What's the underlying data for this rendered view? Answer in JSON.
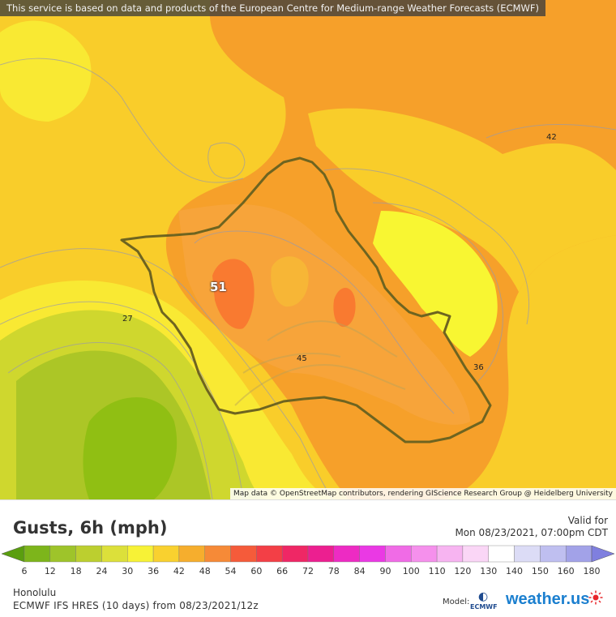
{
  "banner_text": "This service is based on data and products of the European Centre for Medium-range Weather Forecasts (ECMWF)",
  "attribution": "Map data © OpenStreetMap contributors, rendering GIScience Research Group @ Heidelberg University",
  "map_labels": {
    "l42": "42",
    "l51": "51",
    "l27": "27",
    "l45": "45",
    "l36": "36"
  },
  "title": "Gusts, 6h (mph)",
  "valid_label": "Valid for",
  "valid_date": "Mon 08/23/2021, 07:00pm CDT",
  "location": "Honolulu",
  "model_info": "ECMWF IFS HRES (10 days) from 08/23/2021/12z",
  "model_label": "Model:",
  "ecmwf_logo_text": "ECMWF",
  "brand": "weather.us",
  "scale": {
    "labels": [
      "6",
      "12",
      "18",
      "24",
      "30",
      "36",
      "42",
      "48",
      "54",
      "60",
      "66",
      "72",
      "78",
      "84",
      "90",
      "100",
      "110",
      "120",
      "130",
      "140",
      "150",
      "160",
      "180"
    ],
    "colors": [
      "#5a9e0f",
      "#7db51b",
      "#9ec42a",
      "#bccf2f",
      "#dce03a",
      "#f7f236",
      "#f9d12f",
      "#f6ae2d",
      "#f68a37",
      "#f55b3a",
      "#f33f46",
      "#ef2765",
      "#ec1f90",
      "#ed2bc3",
      "#ea39e4",
      "#f06be6",
      "#f590ec",
      "#f7b4f1",
      "#fad6f6",
      "#ffffff",
      "#dcdcf6",
      "#bfbff0",
      "#a2a2e8",
      "#7f7fdf"
    ]
  },
  "colors": {
    "orange_dark": "#f97a30",
    "orange": "#f6a02a",
    "orange_light": "#f7b636",
    "yellow_orange": "#f9cd2a",
    "yellow": "#f9e933",
    "yellow_bright": "#f8f632",
    "lime": "#cfd72e",
    "green_light": "#acc626",
    "green": "#90bf13",
    "coast": "#6e6420"
  }
}
